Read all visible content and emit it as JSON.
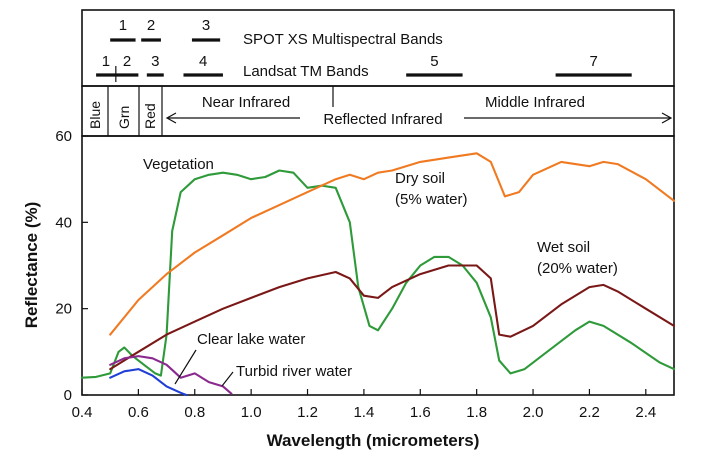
{
  "chart_data": {
    "type": "line",
    "title": "",
    "xlabel": "Wavelength (micrometers)",
    "ylabel": "Reflectance (%)",
    "xlim": [
      0.4,
      2.5
    ],
    "ylim": [
      0,
      60
    ],
    "x_ticks": [
      "0.4",
      "0.6",
      "0.8",
      "1.0",
      "1.2",
      "1.4",
      "1.6",
      "1.8",
      "2.0",
      "2.2",
      "2.4"
    ],
    "y_ticks": [
      "0",
      "20",
      "40",
      "60"
    ],
    "grid": false,
    "series": [
      {
        "name": "Vegetation",
        "color": "#2e9a3a",
        "points": [
          [
            0.4,
            4
          ],
          [
            0.45,
            4.2
          ],
          [
            0.5,
            5
          ],
          [
            0.53,
            10
          ],
          [
            0.55,
            11
          ],
          [
            0.58,
            9
          ],
          [
            0.62,
            7
          ],
          [
            0.66,
            5
          ],
          [
            0.68,
            4.5
          ],
          [
            0.7,
            14
          ],
          [
            0.72,
            38
          ],
          [
            0.75,
            47
          ],
          [
            0.8,
            50
          ],
          [
            0.85,
            51
          ],
          [
            0.9,
            51.5
          ],
          [
            0.95,
            51
          ],
          [
            1.0,
            50
          ],
          [
            1.05,
            50.5
          ],
          [
            1.1,
            52
          ],
          [
            1.15,
            51.5
          ],
          [
            1.2,
            48
          ],
          [
            1.25,
            48.5
          ],
          [
            1.3,
            48
          ],
          [
            1.35,
            40
          ],
          [
            1.38,
            25
          ],
          [
            1.42,
            16
          ],
          [
            1.45,
            15
          ],
          [
            1.5,
            20
          ],
          [
            1.55,
            26
          ],
          [
            1.6,
            30
          ],
          [
            1.65,
            32
          ],
          [
            1.7,
            32
          ],
          [
            1.75,
            30
          ],
          [
            1.8,
            26
          ],
          [
            1.85,
            18
          ],
          [
            1.88,
            8
          ],
          [
            1.92,
            5
          ],
          [
            1.97,
            6
          ],
          [
            2.05,
            10
          ],
          [
            2.15,
            15
          ],
          [
            2.2,
            17
          ],
          [
            2.25,
            16
          ],
          [
            2.35,
            12
          ],
          [
            2.45,
            7.5
          ],
          [
            2.5,
            6
          ]
        ]
      },
      {
        "name": "Dry soil (5% water)",
        "color": "#f07a22",
        "points": [
          [
            0.5,
            14
          ],
          [
            0.6,
            22
          ],
          [
            0.7,
            28
          ],
          [
            0.8,
            33
          ],
          [
            0.9,
            37
          ],
          [
            1.0,
            41
          ],
          [
            1.1,
            44
          ],
          [
            1.2,
            47
          ],
          [
            1.3,
            50
          ],
          [
            1.35,
            51
          ],
          [
            1.4,
            50
          ],
          [
            1.45,
            51.5
          ],
          [
            1.5,
            52
          ],
          [
            1.6,
            54
          ],
          [
            1.7,
            55
          ],
          [
            1.8,
            56
          ],
          [
            1.85,
            54
          ],
          [
            1.9,
            46
          ],
          [
            1.95,
            47
          ],
          [
            2.0,
            51
          ],
          [
            2.1,
            54
          ],
          [
            2.2,
            53
          ],
          [
            2.25,
            54
          ],
          [
            2.3,
            53.5
          ],
          [
            2.4,
            50
          ],
          [
            2.5,
            45
          ]
        ]
      },
      {
        "name": "Wet soil (20% water)",
        "color": "#7a1818",
        "points": [
          [
            0.5,
            6
          ],
          [
            0.6,
            10
          ],
          [
            0.7,
            14
          ],
          [
            0.8,
            17
          ],
          [
            0.9,
            20
          ],
          [
            1.0,
            22.5
          ],
          [
            1.1,
            25
          ],
          [
            1.2,
            27
          ],
          [
            1.3,
            28.5
          ],
          [
            1.35,
            27
          ],
          [
            1.4,
            23
          ],
          [
            1.45,
            22.5
          ],
          [
            1.5,
            25
          ],
          [
            1.6,
            28
          ],
          [
            1.7,
            30
          ],
          [
            1.8,
            30
          ],
          [
            1.85,
            27
          ],
          [
            1.88,
            14
          ],
          [
            1.92,
            13.5
          ],
          [
            2.0,
            16
          ],
          [
            2.1,
            21
          ],
          [
            2.2,
            25
          ],
          [
            2.25,
            25.5
          ],
          [
            2.3,
            24
          ],
          [
            2.4,
            20
          ],
          [
            2.5,
            16
          ]
        ]
      },
      {
        "name": "Clear lake water",
        "color": "#1f3fd6",
        "points": [
          [
            0.5,
            4
          ],
          [
            0.55,
            5.5
          ],
          [
            0.6,
            6
          ],
          [
            0.65,
            4.5
          ],
          [
            0.7,
            2
          ],
          [
            0.75,
            0.5
          ],
          [
            0.77,
            0
          ]
        ]
      },
      {
        "name": "Turbid river water",
        "color": "#8a2a8e",
        "points": [
          [
            0.5,
            7
          ],
          [
            0.55,
            8.5
          ],
          [
            0.6,
            9
          ],
          [
            0.65,
            8.5
          ],
          [
            0.7,
            7
          ],
          [
            0.75,
            4
          ],
          [
            0.8,
            5
          ],
          [
            0.85,
            3
          ],
          [
            0.9,
            2
          ],
          [
            0.93,
            0.3
          ]
        ]
      }
    ],
    "annotations": {
      "vegetation": "Vegetation",
      "dry_soil": [
        "Dry soil",
        "(5% water)"
      ],
      "wet_soil": [
        "Wet soil",
        "(20% water)"
      ],
      "clear_lake": "Clear lake water",
      "turbid_river": "Turbid river water"
    }
  },
  "bands_panel": {
    "spot_title": "SPOT XS Multispectral Bands",
    "landsat_title": "Landsat TM Bands",
    "spot_bands": [
      {
        "label": "1",
        "from": 0.5,
        "to": 0.59
      },
      {
        "label": "2",
        "from": 0.61,
        "to": 0.68
      },
      {
        "label": "3",
        "from": 0.79,
        "to": 0.89
      }
    ],
    "landsat_bands": [
      {
        "label": "1",
        "from": 0.45,
        "to": 0.52
      },
      {
        "label": "2",
        "from": 0.52,
        "to": 0.6
      },
      {
        "label": "3",
        "from": 0.63,
        "to": 0.69
      },
      {
        "label": "4",
        "from": 0.76,
        "to": 0.9
      },
      {
        "label": "5",
        "from": 1.55,
        "to": 1.75
      },
      {
        "label": "7",
        "from": 2.08,
        "to": 2.35
      }
    ]
  },
  "regions_panel": {
    "blue": "Blue",
    "green": "Grn",
    "red": "Red",
    "near_ir": "Near Infrared",
    "middle_ir": "Middle Infrared",
    "reflected_ir": "Reflected Infrared"
  }
}
